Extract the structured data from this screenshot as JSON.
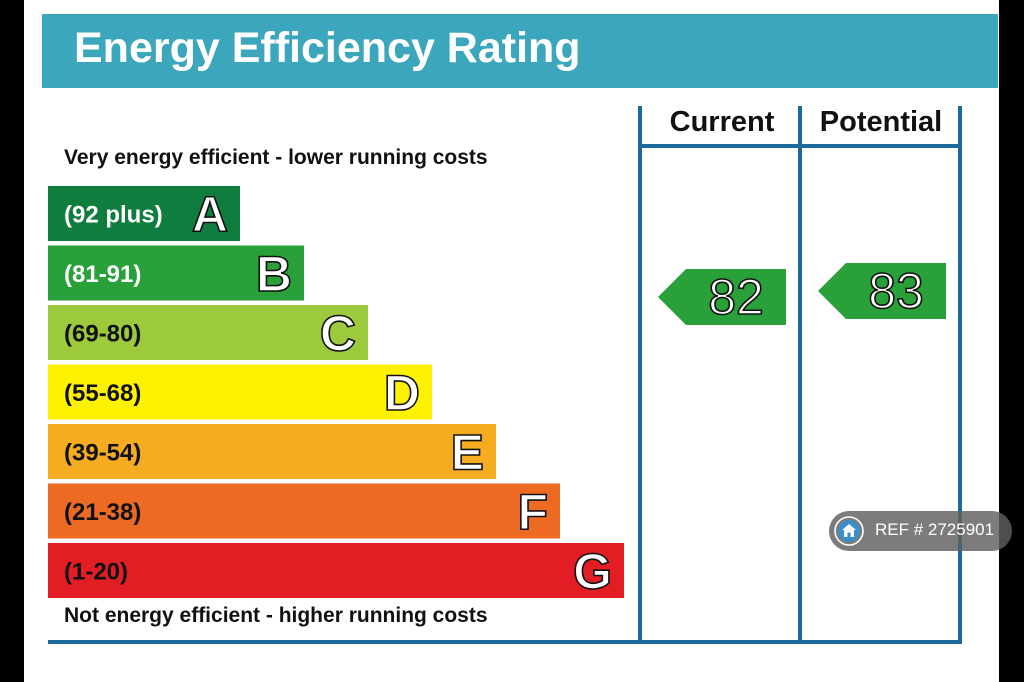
{
  "header": {
    "title": "Energy Efficiency Rating"
  },
  "captions": {
    "top": "Very energy efficient - lower running costs",
    "bottom": "Not energy efficient - higher running costs"
  },
  "columns": {
    "current": "Current",
    "potential": "Potential"
  },
  "ref_badge": {
    "icon": "home-icon",
    "text": "REF # 2725901"
  },
  "chart_data": {
    "type": "bar",
    "title": "Energy Efficiency Rating",
    "bands": [
      {
        "letter": "A",
        "range": "(92 plus)",
        "color": "#0f7d3e",
        "range_color": "#ffffff"
      },
      {
        "letter": "B",
        "range": "(81-91)",
        "color": "#2aa03b",
        "range_color": "#ffffff"
      },
      {
        "letter": "C",
        "range": "(69-80)",
        "color": "#9dc93c",
        "range_color": "#111111"
      },
      {
        "letter": "D",
        "range": "(55-68)",
        "color": "#fff200",
        "range_color": "#111111"
      },
      {
        "letter": "E",
        "range": "(39-54)",
        "color": "#f5ac20",
        "range_color": "#111111"
      },
      {
        "letter": "F",
        "range": "(21-38)",
        "color": "#ec6a22",
        "range_color": "#111111"
      },
      {
        "letter": "G",
        "range": "(1-20)",
        "color": "#e31d24",
        "range_color": "#111111"
      }
    ],
    "ratings": [
      {
        "column": "Current",
        "value": 82,
        "band": "B",
        "color": "#2aa03b"
      },
      {
        "column": "Potential",
        "value": 83,
        "band": "B",
        "color": "#2aa03b"
      }
    ]
  }
}
